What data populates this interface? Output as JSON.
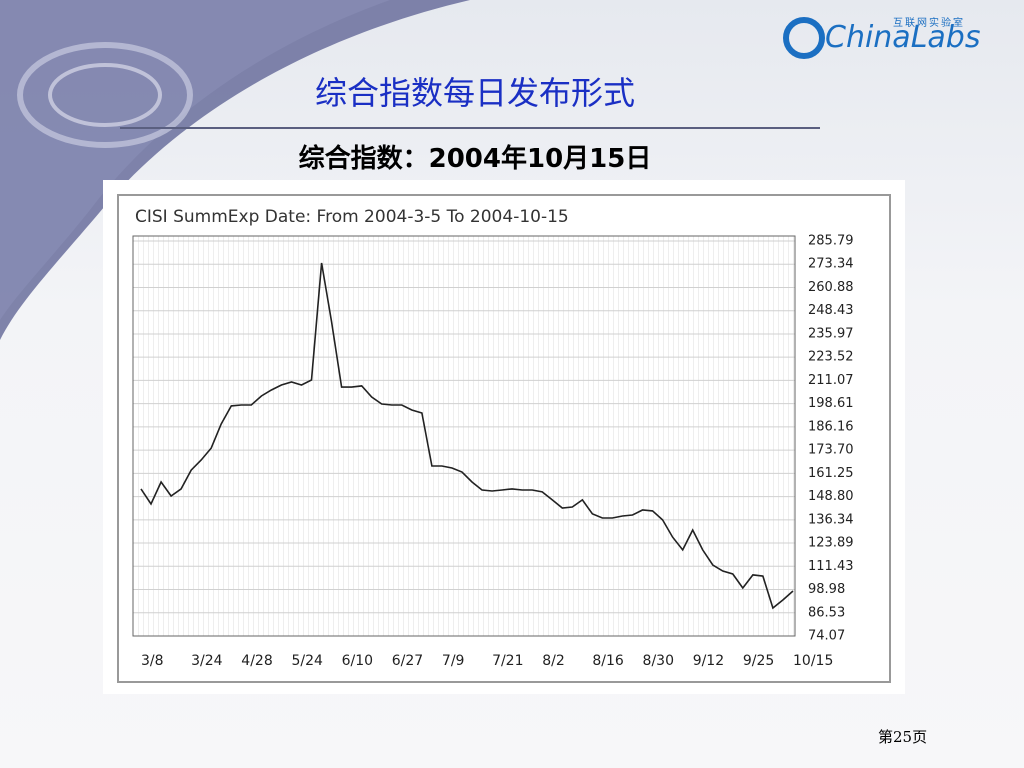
{
  "slide": {
    "title": "综合指数每日发布形式",
    "subtitle": "综合指数：2004年10月15日",
    "logo": "ChinaLabs",
    "logo_sub": "互联网实验室",
    "page": "第25页"
  },
  "chart_data": {
    "type": "line",
    "title": "CISI SummExp Date: From 2004-3-5 To 2004-10-15",
    "color": "#222222",
    "grid": true,
    "categories": [
      "3/8",
      null,
      null,
      null,
      null,
      "3/24",
      null,
      null,
      null,
      null,
      "4/28",
      null,
      null,
      null,
      null,
      "5/24",
      null,
      null,
      null,
      null,
      "6/10",
      null,
      null,
      null,
      null,
      "6/27",
      null,
      null,
      null,
      null,
      "7/9",
      null,
      null,
      null,
      null,
      "7/21",
      null,
      null,
      null,
      null,
      "8/2",
      null,
      null,
      null,
      null,
      "8/16",
      null,
      null,
      null,
      null,
      "8/30",
      null,
      null,
      null,
      null,
      "9/12",
      null,
      null,
      null,
      null,
      "9/25",
      null,
      null,
      null,
      null,
      "10/15"
    ],
    "values": [
      152.9,
      144.8,
      156.6,
      149.1,
      152.9,
      163.0,
      168.4,
      174.8,
      187.7,
      197.4,
      197.9,
      197.9,
      202.7,
      205.9,
      208.6,
      210.2,
      208.6,
      211.3,
      274.0,
      242.4,
      207.5,
      207.5,
      208.1,
      202.2,
      198.4,
      197.9,
      197.9,
      195.2,
      193.6,
      165.2,
      165.2,
      164.1,
      162.0,
      156.6,
      152.3,
      151.8,
      152.3,
      152.9,
      152.3,
      152.3,
      151.3,
      147.0,
      142.7,
      143.2,
      147.0,
      139.5,
      137.3,
      137.3,
      138.4,
      138.9,
      141.6,
      141.1,
      136.3,
      127.1,
      120.2,
      130.9,
      120.2,
      112.1,
      108.9,
      107.3,
      99.8,
      106.8,
      106.2,
      89.1,
      93.4,
      98.2
    ],
    "ylim": [
      74.07,
      285.79
    ],
    "yticks": [
      74.07,
      86.53,
      98.98,
      111.43,
      123.89,
      136.34,
      {
        "value": 148.8,
        "label": "148.80"
      },
      161.25,
      {
        "value": 173.7,
        "label": "173.70"
      },
      186.16,
      198.61,
      211.07,
      223.52,
      235.97,
      248.43,
      260.88,
      273.34,
      285.79
    ]
  }
}
